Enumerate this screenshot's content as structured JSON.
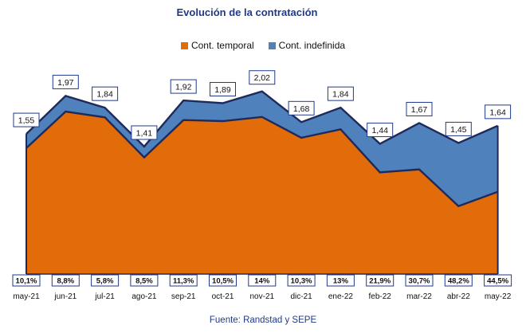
{
  "chart_data": {
    "type": "area",
    "title": "Evolución de la contratación",
    "source": "Fuente: Randstad y SEPE",
    "categories": [
      "may-21",
      "jun-21",
      "jul-21",
      "ago-21",
      "sep-21",
      "oct-21",
      "nov-21",
      "dic-21",
      "ene-22",
      "feb-22",
      "mar-22",
      "abr-22",
      "may-22"
    ],
    "totals": [
      1.55,
      1.97,
      1.84,
      1.41,
      1.92,
      1.89,
      2.02,
      1.68,
      1.84,
      1.44,
      1.67,
      1.45,
      1.64
    ],
    "total_labels": [
      "1,55",
      "1,97",
      "1,84",
      "1,41",
      "1,92",
      "1,89",
      "2,02",
      "1,68",
      "1,84",
      "1,44",
      "1,67",
      "1,45",
      "1,64"
    ],
    "indefinida_share_labels": [
      "10,1%",
      "8,8%",
      "5,8%",
      "8,5%",
      "11,3%",
      "10,5%",
      "14%",
      "10,3%",
      "13%",
      "21,9%",
      "30,7%",
      "48,2%",
      "44,5%"
    ],
    "indefinida_share": [
      10.1,
      8.8,
      5.8,
      8.5,
      11.3,
      10.5,
      14,
      10.3,
      13,
      21.9,
      30.7,
      48.2,
      44.5
    ],
    "series": [
      {
        "name": "Cont. temporal",
        "color": "#e36c0a"
      },
      {
        "name": "Cont. indefinida",
        "color": "#4f81bd"
      }
    ],
    "outline_color": "#1f2a5a",
    "ylim": [
      0,
      2.2
    ],
    "legend_position": "top",
    "grid": false
  }
}
